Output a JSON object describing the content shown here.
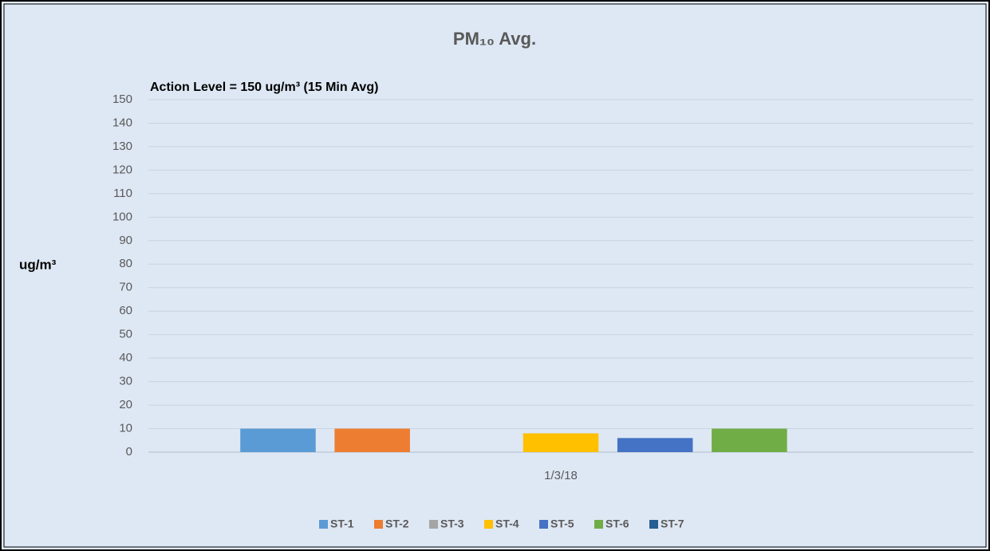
{
  "chart_data": {
    "type": "bar",
    "title": "PM₁₀ Avg.",
    "annotation": "Action Level = 150 ug/m³ (15 Min Avg)",
    "y_label": "ug/m³",
    "categories": [
      "1/3/18"
    ],
    "series": [
      {
        "name": "ST-1",
        "color": "#5b9bd5",
        "values": [
          10
        ]
      },
      {
        "name": "ST-2",
        "color": "#ed7d31",
        "values": [
          10
        ]
      },
      {
        "name": "ST-3",
        "color": "#a5a5a5",
        "values": [
          0
        ]
      },
      {
        "name": "ST-4",
        "color": "#ffc000",
        "values": [
          8
        ]
      },
      {
        "name": "ST-5",
        "color": "#4472c4",
        "values": [
          6
        ]
      },
      {
        "name": "ST-6",
        "color": "#70ad47",
        "values": [
          10
        ]
      },
      {
        "name": "ST-7",
        "color": "#255e91",
        "values": [
          0
        ]
      }
    ],
    "ylim": [
      0,
      150
    ],
    "yticks": [
      0,
      10,
      20,
      30,
      40,
      50,
      60,
      70,
      80,
      90,
      100,
      110,
      120,
      130,
      140,
      150
    ],
    "grid": true,
    "legend": "bottom"
  }
}
